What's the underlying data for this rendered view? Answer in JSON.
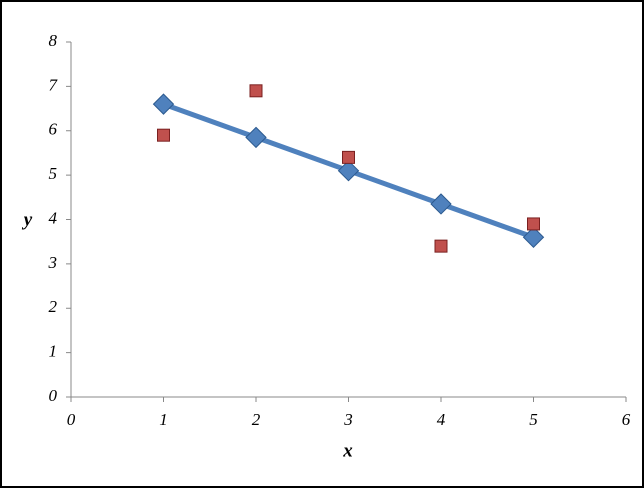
{
  "chart_data": {
    "type": "scatter",
    "x_label": "x",
    "y_label": "y",
    "x": [
      1,
      2,
      3,
      4,
      5
    ],
    "series": [
      {
        "color": "#4f81bd",
        "marker": "diamond",
        "line": true,
        "values": [
          6.6,
          5.85,
          5.1,
          4.35,
          3.6
        ]
      },
      {
        "color": "#c0504d",
        "marker": "square",
        "line": false,
        "values": [
          5.9,
          6.9,
          5.4,
          3.4,
          3.9
        ]
      }
    ],
    "xlim": [
      0,
      6
    ],
    "xticks": [
      0,
      1,
      2,
      3,
      4,
      5,
      6
    ],
    "ylim": [
      0,
      8
    ],
    "yticks": [
      0,
      1,
      2,
      3,
      4,
      5,
      6,
      7,
      8
    ],
    "grid": false
  }
}
